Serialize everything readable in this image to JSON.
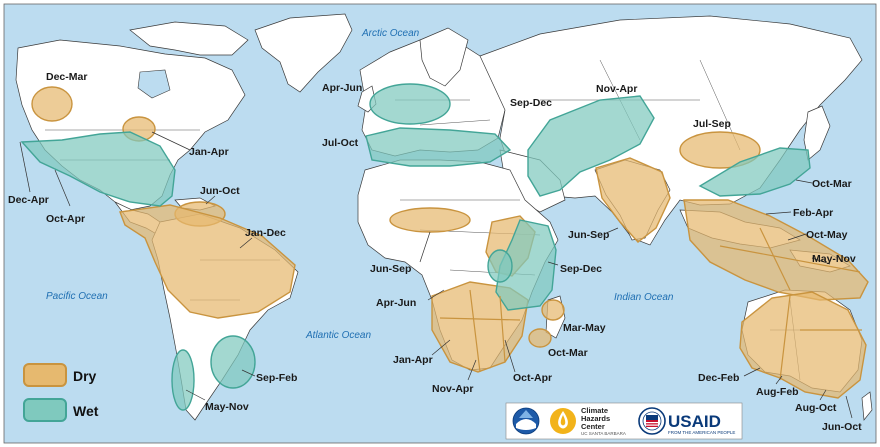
{
  "oceans": {
    "arctic": "Arctic Ocean",
    "pacific": "Pacific Ocean",
    "atlantic": "Atlantic Ocean",
    "indian": "Indian Ocean"
  },
  "legend": {
    "dry_label": "Dry",
    "wet_label": "Wet"
  },
  "colors": {
    "ocean": "#bcdcf0",
    "land": "#ffffff",
    "dry_fill": "#e6b96f",
    "dry_stroke": "#c9943f",
    "wet_fill": "#7fc9be",
    "wet_stroke": "#43a597"
  },
  "regions": {
    "na_dec_mar": "Dec-Mar",
    "na_jan_apr": "Jan-Apr",
    "na_dec_apr": "Dec-Apr",
    "na_oct_apr": "Oct-Apr",
    "car_jun_oct": "Jun-Oct",
    "sa_jan_dec": "Jan-Dec",
    "sa_sep_feb": "Sep-Feb",
    "sa_may_nov": "May-Nov",
    "eu_apr_jun": "Apr-Jun",
    "eu_jul_oct": "Jul-Oct",
    "me_sep_dec": "Sep-Dec",
    "ca_nov_apr": "Nov-Apr",
    "ea_jul_sep": "Jul-Sep",
    "ea_oct_mar": "Oct-Mar",
    "in_jun_sep": "Jun-Sep",
    "sea_feb_apr": "Feb-Apr",
    "sea_oct_may": "Oct-May",
    "sea_may_nov": "May-Nov",
    "af_jun_sep": "Jun-Sep",
    "af_sep_dec": "Sep-Dec",
    "af_apr_jun": "Apr-Jun",
    "af_jan_apr": "Jan-Apr",
    "af_nov_apr": "Nov-Apr",
    "af_oct_apr": "Oct-Apr",
    "mad_mar_may": "Mar-May",
    "mad_oct_mar": "Oct-Mar",
    "au_dec_feb": "Dec-Feb",
    "au_aug_feb": "Aug-Feb",
    "au_aug_oct": "Aug-Oct",
    "au_jun_oct": "Jun-Oct"
  },
  "logos": {
    "noaa_icon": "noaa-logo",
    "chc_line1": "Climate",
    "chc_line2": "Hazards",
    "chc_line3": "Center",
    "chc_sub": "UC SANTA BARBARA",
    "usaid": "USAID",
    "usaid_sub": "FROM THE AMERICAN PEOPLE"
  }
}
